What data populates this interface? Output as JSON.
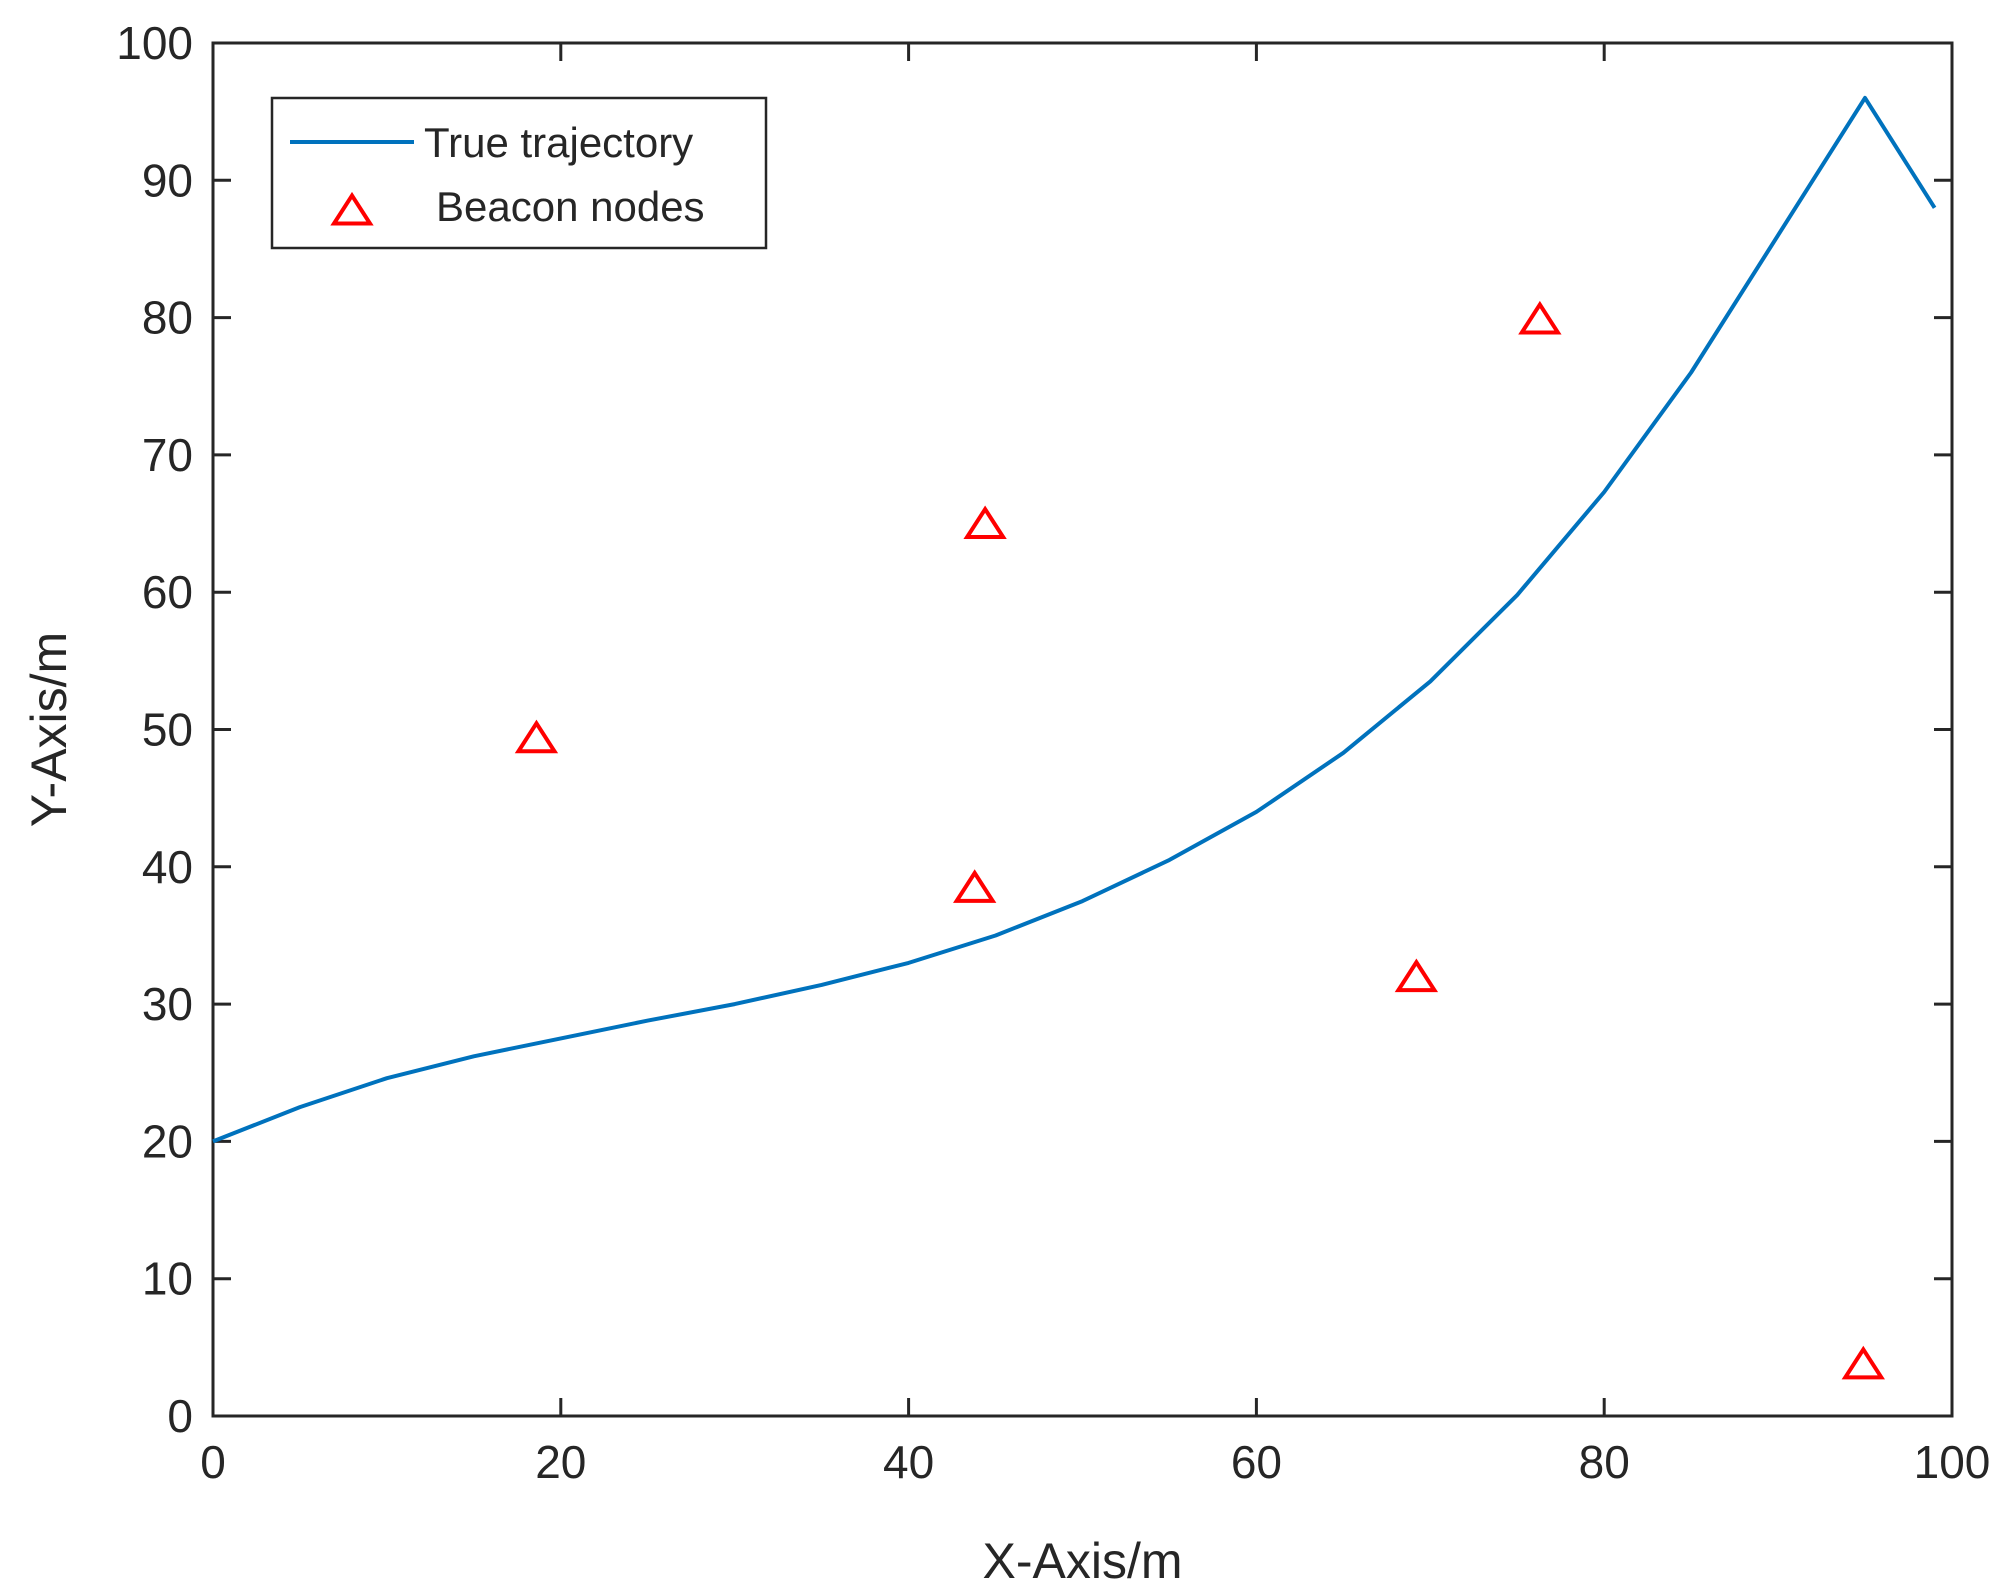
{
  "chart_data": {
    "type": "line",
    "title": "",
    "xlabel": "X-Axis/m",
    "ylabel": "Y-Axis/m",
    "xlim": [
      0,
      100
    ],
    "ylim": [
      0,
      100
    ],
    "xticks": [
      0,
      20,
      40,
      60,
      80,
      100
    ],
    "yticks": [
      0,
      10,
      20,
      30,
      40,
      50,
      60,
      70,
      80,
      90,
      100
    ],
    "grid": false,
    "legend_position": "top-left",
    "series": [
      {
        "name": "True trajectory",
        "type": "line",
        "color": "#0072BD",
        "x": [
          0,
          5,
          10,
          15,
          20,
          25,
          30,
          35,
          40,
          45,
          50,
          55,
          60,
          65,
          70,
          75,
          80,
          85,
          90,
          95,
          99
        ],
        "y": [
          20.0,
          22.5,
          24.6,
          26.2,
          27.5,
          28.8,
          30.0,
          31.4,
          33.0,
          35.0,
          37.5,
          40.5,
          44.0,
          48.3,
          53.5,
          59.8,
          67.3,
          76.0,
          86.0,
          96.0,
          88.0
        ]
      },
      {
        "name": "Beacon nodes",
        "type": "scatter",
        "marker": "triangle",
        "color": "#FF0000",
        "x": [
          18.6,
          44.4,
          43.8,
          69.2,
          76.3,
          94.9
        ],
        "y": [
          49.4,
          65.0,
          38.5,
          32.0,
          79.9,
          3.8
        ]
      }
    ]
  }
}
